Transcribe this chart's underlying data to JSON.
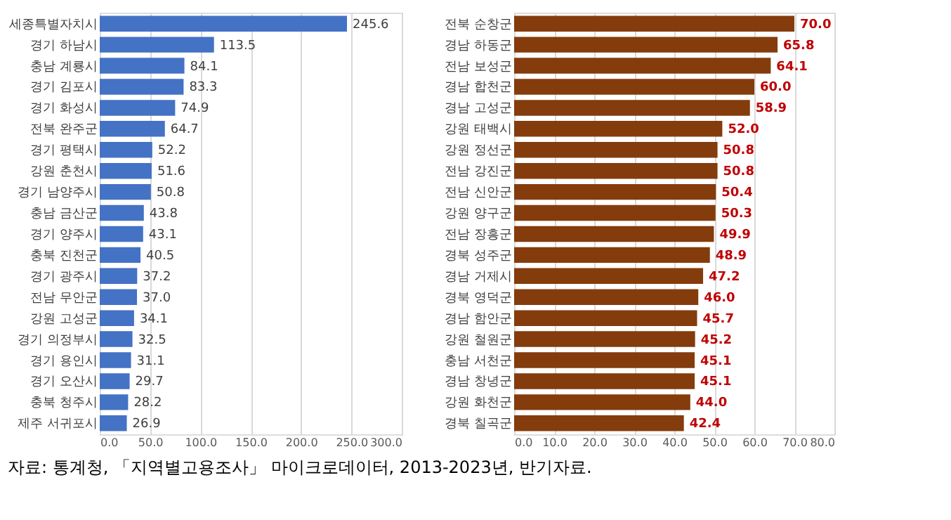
{
  "chart_data": [
    {
      "type": "bar",
      "orientation": "horizontal",
      "categories": [
        "세종특별자치시",
        "경기 하남시",
        "충남 계룡시",
        "경기 김포시",
        "경기 화성시",
        "전북 완주군",
        "경기 평택시",
        "강원 춘천시",
        "경기 남양주시",
        "충남 금산군",
        "경기 양주시",
        "충북 진천군",
        "경기 광주시",
        "전남 무안군",
        "강원 고성군",
        "경기 의정부시",
        "경기 용인시",
        "경기 오산시",
        "충북 청주시",
        "제주 서귀포시"
      ],
      "values": [
        245.6,
        113.5,
        84.1,
        83.3,
        74.9,
        64.7,
        52.2,
        51.6,
        50.8,
        43.8,
        43.1,
        40.5,
        37.2,
        37.0,
        34.1,
        32.5,
        31.1,
        29.7,
        28.2,
        26.9
      ],
      "value_labels": [
        "245.6",
        "113.5",
        "84.1",
        "83.3",
        "74.9",
        "64.7",
        "52.2",
        "51.6",
        "50.8",
        "43.8",
        "43.1",
        "40.5",
        "37.2",
        "37.0",
        "34.1",
        "32.5",
        "31.1",
        "29.7",
        "28.2",
        "26.9"
      ],
      "color": "#4472c4",
      "xlim": [
        0,
        300
      ],
      "xticks": [
        {
          "value": 0,
          "label": "0.0"
        },
        {
          "value": 50,
          "label": "50.0"
        },
        {
          "value": 100,
          "label": "100.0"
        },
        {
          "value": 150,
          "label": "150.0"
        },
        {
          "value": 200,
          "label": "200.0"
        },
        {
          "value": 250,
          "label": "250.0"
        },
        {
          "value": 300,
          "label": "300.0"
        }
      ],
      "grid": "x",
      "annotations": [
        "자료: 통계청, 「지역별고용조사」 마이크로데이터, 2013-2023년, 반기자료."
      ]
    },
    {
      "type": "bar",
      "orientation": "horizontal",
      "categories": [
        "전북 순창군",
        "경남 하동군",
        "전남 보성군",
        "경남 합천군",
        "경남 고성군",
        "강원 태백시",
        "강원 정선군",
        "전남 강진군",
        "전남 신안군",
        "강원 양구군",
        "전남 장흥군",
        "경북 성주군",
        "경남 거제시",
        "경북 영덕군",
        "경남 함안군",
        "강원 철원군",
        "충남 서천군",
        "경남 창녕군",
        "강원 화천군",
        "경북 칠곡군"
      ],
      "values": [
        70.0,
        65.8,
        64.1,
        60.0,
        58.9,
        52.0,
        50.8,
        50.8,
        50.4,
        50.3,
        49.9,
        48.9,
        47.2,
        46.0,
        45.7,
        45.2,
        45.1,
        45.1,
        44.0,
        42.4
      ],
      "value_labels": [
        "70.0",
        "65.8",
        "64.1",
        "60.0",
        "58.9",
        "52.0",
        "50.8",
        "50.8",
        "50.4",
        "50.3",
        "49.9",
        "48.9",
        "47.2",
        "46.0",
        "45.7",
        "45.2",
        "45.1",
        "45.1",
        "44.0",
        "42.4"
      ],
      "color": "#843c0c",
      "xlim": [
        0,
        80
      ],
      "xticks": [
        {
          "value": 0,
          "label": "0.0"
        },
        {
          "value": 10,
          "label": "10.0"
        },
        {
          "value": 20,
          "label": "20.0"
        },
        {
          "value": 30,
          "label": "30.0"
        },
        {
          "value": 40,
          "label": "40.0"
        },
        {
          "value": 50,
          "label": "50.0"
        },
        {
          "value": 60,
          "label": "60.0"
        },
        {
          "value": 70,
          "label": "70.0"
        },
        {
          "value": 80,
          "label": "80.0"
        }
      ],
      "grid": "x"
    }
  ]
}
